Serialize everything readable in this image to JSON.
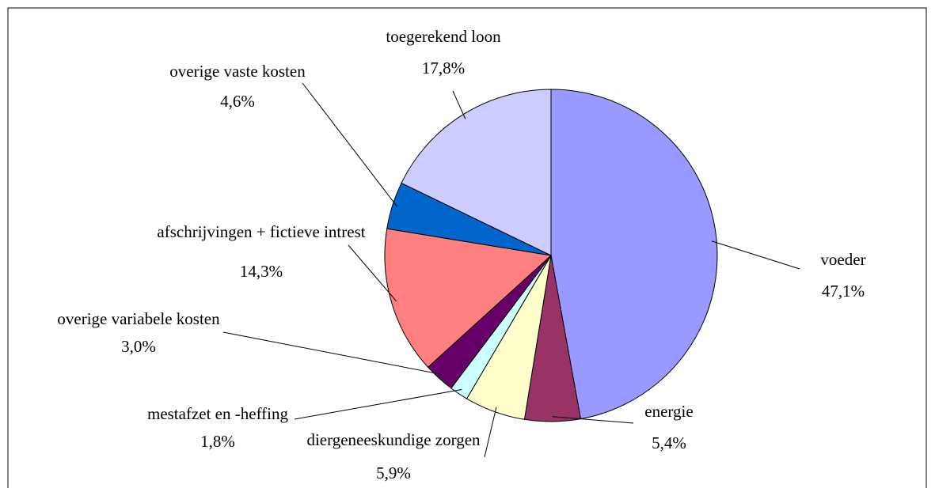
{
  "chart_data": {
    "type": "pie",
    "categories": [
      "voeder",
      "energie",
      "diergeneeskundige zorgen",
      "mestafzet en -heffing",
      "overige variabele kosten",
      "afschrijvingen + fictieve intrest",
      "overige vaste kosten",
      "toegerekend loon"
    ],
    "values": [
      47.1,
      5.4,
      5.9,
      1.8,
      3.0,
      14.3,
      4.6,
      17.8
    ],
    "value_labels": [
      "47,1%",
      "5,4%",
      "5,9%",
      "1,8%",
      "3,0%",
      "14,3%",
      "4,6%",
      "17,8%"
    ],
    "colors": [
      "#9999ff",
      "#993366",
      "#ffffcc",
      "#ccffff",
      "#660066",
      "#ff8080",
      "#0066cc",
      "#ccccff"
    ]
  }
}
